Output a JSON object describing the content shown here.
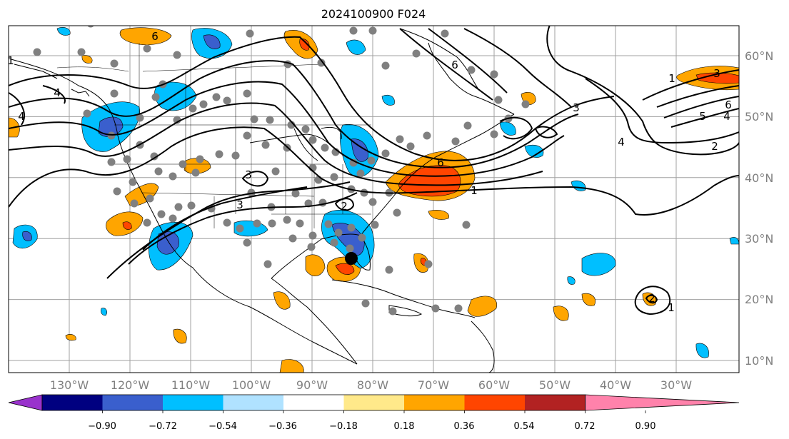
{
  "title": "2024100900 F024",
  "longitude_labels": [
    "130°W",
    "120°W",
    "110°W",
    "100°W",
    "90°W",
    "80°W",
    "70°W",
    "60°W",
    "50°W",
    "40°W",
    "30°W"
  ],
  "latitude_labels": [
    "60°N",
    "50°N",
    "40°N",
    "30°N",
    "20°N",
    "10°N"
  ],
  "colorbar": {
    "colors": [
      "#9932cc",
      "#000080",
      "#3a5fcd",
      "#00bfff",
      "#b0e2ff",
      "#ffffff",
      "#ffe98a",
      "#ffa500",
      "#ff4500",
      "#b22222",
      "#ff82ab"
    ],
    "tick_labels": [
      "−0.90",
      "−0.72",
      "−0.54",
      "−0.36",
      "−0.18",
      "0.18",
      "0.36",
      "0.54",
      "0.72",
      "0.90"
    ]
  },
  "contour_labels": [
    "6",
    "4",
    "1",
    "4",
    "3",
    "2",
    "3",
    "6",
    "1",
    "1",
    "6",
    "3",
    "4",
    "2",
    "1",
    "3",
    "4",
    "5",
    "6",
    "2"
  ],
  "storm_marker": "current position",
  "colors": {
    "frame": "#000000",
    "grid": "#a0a0a0",
    "obs_dot": "#808080",
    "contour": "#000000"
  }
}
